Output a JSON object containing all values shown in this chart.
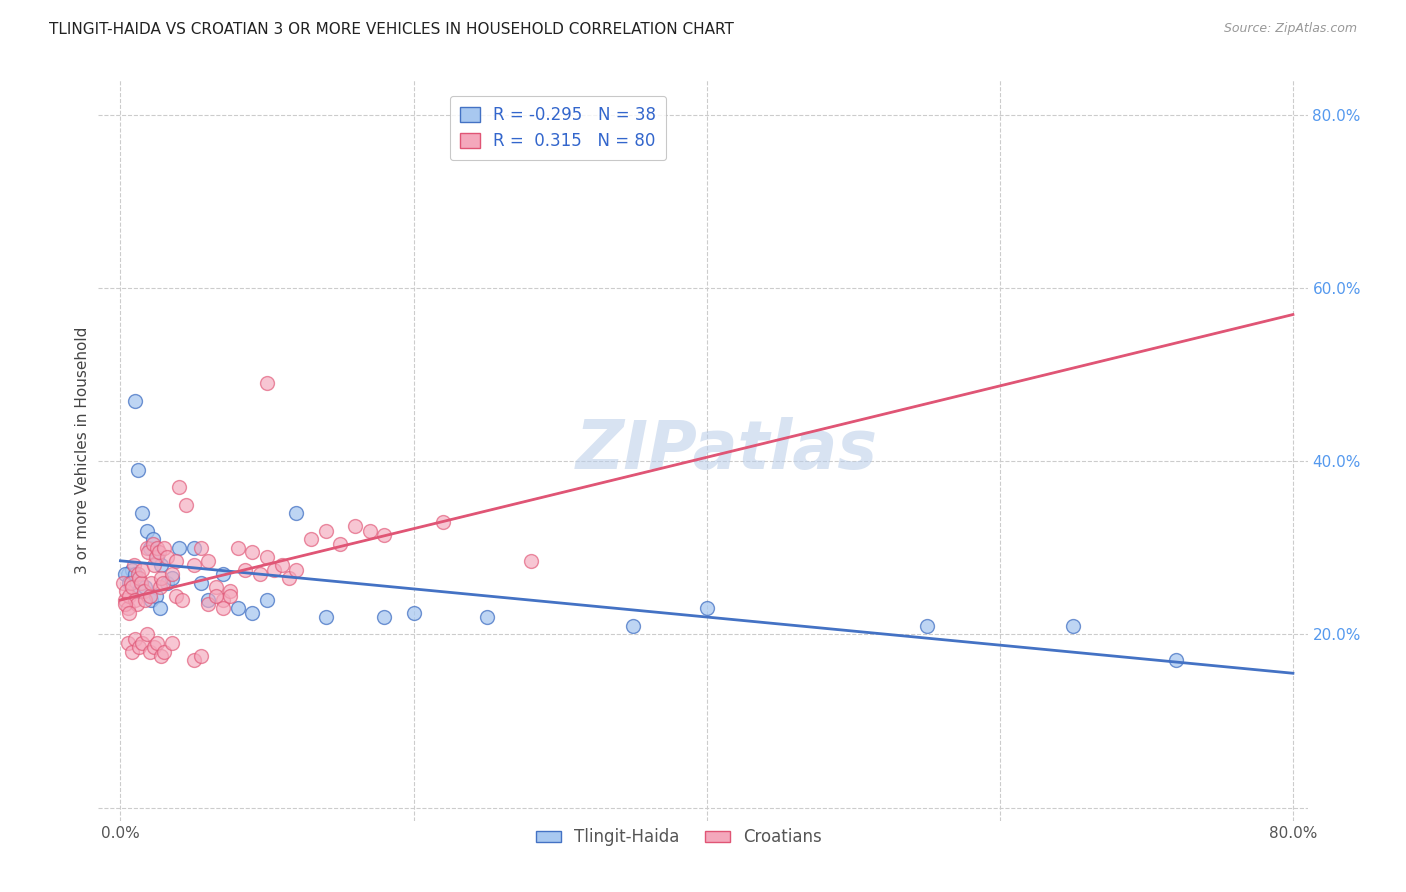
{
  "title": "TLINGIT-HAIDA VS CROATIAN 3 OR MORE VEHICLES IN HOUSEHOLD CORRELATION CHART",
  "source": "Source: ZipAtlas.com",
  "ylabel": "3 or more Vehicles in Household",
  "watermark": "ZIPatlas",
  "legend_r_blue": "-0.295",
  "legend_n_blue": "38",
  "legend_r_pink": "0.315",
  "legend_n_pink": "80",
  "blue_color": "#A8C8F0",
  "pink_color": "#F4A8BC",
  "blue_line_color": "#4472C4",
  "pink_line_color": "#E05575",
  "blue_scatter": [
    [
      0.5,
      27.0
    ],
    [
      0.8,
      27.5
    ],
    [
      1.0,
      47.0
    ],
    [
      1.2,
      39.0
    ],
    [
      1.5,
      34.0
    ],
    [
      1.8,
      32.0
    ],
    [
      2.0,
      30.0
    ],
    [
      2.2,
      31.0
    ],
    [
      2.5,
      29.0
    ],
    [
      2.8,
      28.0
    ],
    [
      0.3,
      27.0
    ],
    [
      0.6,
      26.0
    ],
    [
      1.0,
      27.0
    ],
    [
      1.3,
      25.0
    ],
    [
      1.7,
      25.5
    ],
    [
      2.1,
      24.0
    ],
    [
      2.4,
      24.5
    ],
    [
      2.7,
      23.0
    ],
    [
      3.2,
      26.0
    ],
    [
      3.5,
      26.5
    ],
    [
      4.0,
      30.0
    ],
    [
      5.0,
      30.0
    ],
    [
      5.5,
      26.0
    ],
    [
      6.0,
      24.0
    ],
    [
      7.0,
      27.0
    ],
    [
      8.0,
      23.0
    ],
    [
      9.0,
      22.5
    ],
    [
      10.0,
      24.0
    ],
    [
      12.0,
      34.0
    ],
    [
      14.0,
      22.0
    ],
    [
      18.0,
      22.0
    ],
    [
      20.0,
      22.5
    ],
    [
      25.0,
      22.0
    ],
    [
      35.0,
      21.0
    ],
    [
      40.0,
      23.0
    ],
    [
      55.0,
      21.0
    ],
    [
      65.0,
      21.0
    ],
    [
      72.0,
      17.0
    ]
  ],
  "pink_scatter": [
    [
      0.2,
      26.0
    ],
    [
      0.3,
      24.0
    ],
    [
      0.4,
      25.0
    ],
    [
      0.5,
      23.0
    ],
    [
      0.6,
      24.5
    ],
    [
      0.7,
      26.0
    ],
    [
      0.8,
      25.5
    ],
    [
      0.9,
      28.0
    ],
    [
      1.0,
      24.0
    ],
    [
      1.1,
      23.5
    ],
    [
      1.2,
      27.0
    ],
    [
      1.3,
      26.5
    ],
    [
      1.4,
      26.0
    ],
    [
      1.5,
      27.5
    ],
    [
      1.6,
      25.0
    ],
    [
      1.7,
      24.0
    ],
    [
      1.8,
      30.0
    ],
    [
      1.9,
      29.5
    ],
    [
      2.0,
      24.5
    ],
    [
      2.1,
      26.0
    ],
    [
      2.2,
      30.5
    ],
    [
      2.3,
      28.0
    ],
    [
      2.4,
      29.0
    ],
    [
      2.5,
      30.0
    ],
    [
      2.6,
      29.5
    ],
    [
      2.7,
      25.5
    ],
    [
      2.8,
      26.5
    ],
    [
      2.9,
      26.0
    ],
    [
      3.0,
      30.0
    ],
    [
      3.2,
      29.0
    ],
    [
      3.5,
      27.0
    ],
    [
      3.8,
      28.5
    ],
    [
      4.0,
      37.0
    ],
    [
      4.5,
      35.0
    ],
    [
      5.0,
      28.0
    ],
    [
      5.5,
      30.0
    ],
    [
      6.0,
      28.5
    ],
    [
      6.5,
      25.5
    ],
    [
      7.0,
      24.0
    ],
    [
      7.5,
      25.0
    ],
    [
      8.0,
      30.0
    ],
    [
      8.5,
      27.5
    ],
    [
      9.0,
      29.5
    ],
    [
      9.5,
      27.0
    ],
    [
      10.0,
      29.0
    ],
    [
      10.5,
      27.5
    ],
    [
      11.0,
      28.0
    ],
    [
      11.5,
      26.5
    ],
    [
      12.0,
      27.5
    ],
    [
      13.0,
      31.0
    ],
    [
      14.0,
      32.0
    ],
    [
      15.0,
      30.5
    ],
    [
      16.0,
      32.5
    ],
    [
      17.0,
      32.0
    ],
    [
      18.0,
      31.5
    ],
    [
      0.5,
      19.0
    ],
    [
      0.8,
      18.0
    ],
    [
      1.0,
      19.5
    ],
    [
      1.3,
      18.5
    ],
    [
      1.5,
      19.0
    ],
    [
      1.8,
      20.0
    ],
    [
      2.0,
      18.0
    ],
    [
      2.3,
      18.5
    ],
    [
      2.5,
      19.0
    ],
    [
      2.8,
      17.5
    ],
    [
      3.0,
      18.0
    ],
    [
      3.5,
      19.0
    ],
    [
      3.8,
      24.5
    ],
    [
      4.2,
      24.0
    ],
    [
      5.0,
      17.0
    ],
    [
      5.5,
      17.5
    ],
    [
      6.0,
      23.5
    ],
    [
      6.5,
      24.5
    ],
    [
      7.0,
      23.0
    ],
    [
      7.5,
      24.5
    ],
    [
      10.0,
      49.0
    ],
    [
      0.3,
      23.5
    ],
    [
      0.6,
      22.5
    ],
    [
      22.0,
      33.0
    ],
    [
      28.0,
      28.5
    ]
  ],
  "xlim": [
    -1.5,
    81
  ],
  "ylim": [
    -1.5,
    84
  ],
  "grid_positions_x": [
    0,
    20,
    40,
    60,
    80
  ],
  "grid_positions_y": [
    0,
    20,
    40,
    60,
    80
  ],
  "grid_color": "#CCCCCC",
  "bg_color": "#FFFFFF"
}
